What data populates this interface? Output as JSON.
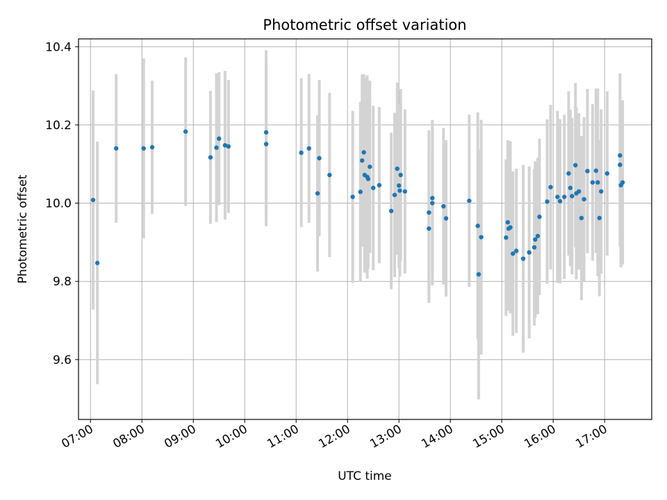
{
  "chart_data": {
    "type": "scatter",
    "title": "Photometric offset variation",
    "xlabel": "UTC time",
    "ylabel": "Photometric offset",
    "xlim": [
      "06:46",
      "17:55"
    ],
    "ylim": [
      9.447,
      10.42
    ],
    "grid": true,
    "x_ticks": [
      "07:00",
      "08:00",
      "09:00",
      "10:00",
      "11:00",
      "12:00",
      "13:00",
      "14:00",
      "15:00",
      "16:00",
      "17:00"
    ],
    "y_ticks": [
      9.6,
      9.8,
      10.0,
      10.2,
      10.4
    ],
    "y_tick_labels": [
      "9.6",
      "9.8",
      "10.0",
      "10.2",
      "10.4"
    ],
    "point_color": "#1f77b4",
    "errorbar_color": "#d3d3d3",
    "series": [
      {
        "x": [
          "07:03",
          "07:08",
          "07:30",
          "08:02",
          "08:12",
          "08:51",
          "09:20",
          "09:27",
          "09:30",
          "09:37",
          "09:41",
          "10:25",
          "10:25",
          "11:06",
          "11:15",
          "11:25",
          "11:27",
          "11:39",
          "12:06",
          "12:15",
          "12:17",
          "12:19",
          "12:20",
          "12:23",
          "12:24",
          "12:26",
          "12:30",
          "12:37",
          "12:51",
          "12:55",
          "12:58",
          "13:00",
          "13:01",
          "13:02",
          "13:07",
          "13:35",
          "13:35",
          "13:39",
          "13:39",
          "13:52",
          "13:55",
          "14:22",
          "14:32",
          "14:33",
          "14:36",
          "15:05",
          "15:07",
          "15:08",
          "15:10",
          "15:13",
          "15:17",
          "15:25",
          "15:32",
          "15:38",
          "15:39",
          "15:42",
          "15:44",
          "15:53",
          "15:57",
          "16:05",
          "16:08",
          "16:13",
          "16:18",
          "16:20",
          "16:22",
          "16:26",
          "16:27",
          "16:30",
          "16:33",
          "16:36",
          "16:40",
          "16:46",
          "16:50",
          "16:52",
          "16:54",
          "16:56",
          "17:03",
          "17:18",
          "17:18",
          "17:19",
          "17:21"
        ],
        "y": [
          10.008,
          9.847,
          10.14,
          10.14,
          10.143,
          10.183,
          10.117,
          10.142,
          10.165,
          10.148,
          10.145,
          10.181,
          10.151,
          10.129,
          10.14,
          10.025,
          10.115,
          10.072,
          10.016,
          10.029,
          10.109,
          10.13,
          10.072,
          10.067,
          10.062,
          10.093,
          10.039,
          10.046,
          9.98,
          10.021,
          10.088,
          10.045,
          10.032,
          10.072,
          10.03,
          9.935,
          9.976,
          10.013,
          10.0,
          9.992,
          9.961,
          10.006,
          9.942,
          9.818,
          9.913,
          9.912,
          9.951,
          9.935,
          9.938,
          9.871,
          9.878,
          9.858,
          9.874,
          9.887,
          9.907,
          9.916,
          9.965,
          10.004,
          10.041,
          10.016,
          10.005,
          10.016,
          10.076,
          10.039,
          10.018,
          10.097,
          10.025,
          10.03,
          9.962,
          10.01,
          10.082,
          10.053,
          10.083,
          10.053,
          9.962,
          10.03,
          10.076,
          10.098,
          10.122,
          10.046,
          10.053
        ],
        "yerr": [
          0.28,
          0.31,
          0.19,
          0.23,
          0.17,
          0.19,
          0.17,
          0.19,
          0.17,
          0.19,
          0.17,
          0.21,
          0.21,
          0.19,
          0.19,
          0.2,
          0.2,
          0.21,
          0.22,
          0.23,
          0.22,
          0.2,
          0.25,
          0.26,
          0.23,
          0.22,
          0.21,
          0.2,
          0.2,
          0.21,
          0.22,
          0.21,
          0.22,
          0.22,
          0.21,
          0.19,
          0.21,
          0.2,
          0.21,
          0.2,
          0.2,
          0.22,
          0.29,
          0.32,
          0.3,
          0.2,
          0.21,
          0.21,
          0.22,
          0.21,
          0.21,
          0.24,
          0.22,
          0.2,
          0.2,
          0.2,
          0.2,
          0.21,
          0.21,
          0.22,
          0.21,
          0.21,
          0.21,
          0.2,
          0.2,
          0.21,
          0.22,
          0.2,
          0.21,
          0.21,
          0.21,
          0.2,
          0.21,
          0.24,
          0.2,
          0.21,
          0.21,
          0.21,
          0.21,
          0.21,
          0.21
        ]
      }
    ]
  }
}
